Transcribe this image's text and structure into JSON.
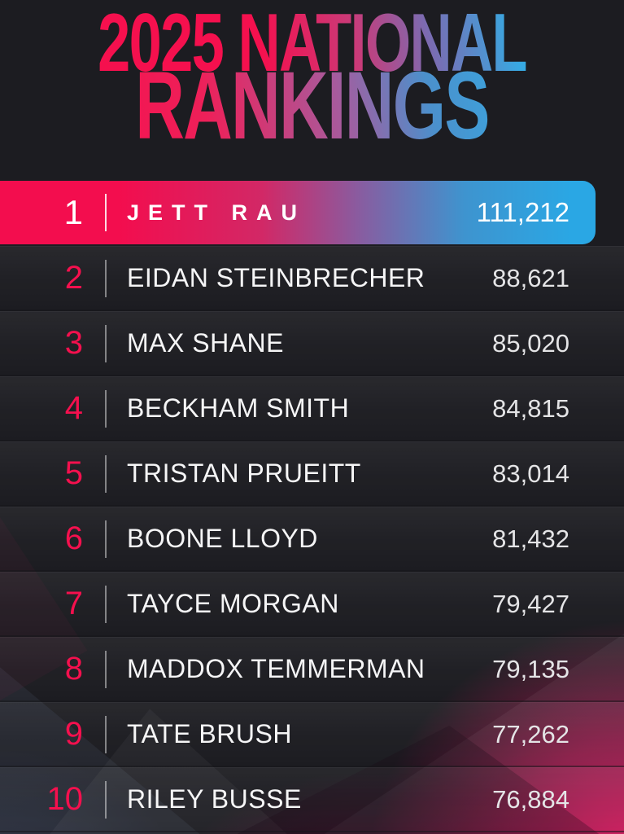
{
  "header": {
    "title_line1": "2025 NATIONAL",
    "title_line2": "RANKINGS"
  },
  "colors": {
    "accent_pink": "#F5104E",
    "accent_blue": "#2AA7E4",
    "gradient_mid_purple": "#8A5B9F",
    "background_dark": "#1C1C21",
    "glow_magenta": "#DC145F",
    "name_text": "#F5F5F6",
    "score_text": "#E4E4E6"
  },
  "chart_data": {
    "type": "table",
    "title": "2025 NATIONAL RANKINGS",
    "columns": [
      "rank",
      "name",
      "points"
    ],
    "rows": [
      {
        "rank": "1",
        "name": "JETT RAU",
        "points": "111,212"
      },
      {
        "rank": "2",
        "name": "EIDAN STEINBRECHER",
        "points": "88,621"
      },
      {
        "rank": "3",
        "name": "MAX SHANE",
        "points": "85,020"
      },
      {
        "rank": "4",
        "name": "BECKHAM SMITH",
        "points": "84,815"
      },
      {
        "rank": "5",
        "name": "TRISTAN PRUEITT",
        "points": "83,014"
      },
      {
        "rank": "6",
        "name": "BOONE LLOYD",
        "points": "81,432"
      },
      {
        "rank": "7",
        "name": "TAYCE MORGAN",
        "points": "79,427"
      },
      {
        "rank": "8",
        "name": "MADDOX TEMMERMAN",
        "points": "79,135"
      },
      {
        "rank": "9",
        "name": "TATE BRUSH",
        "points": "77,262"
      },
      {
        "rank": "10",
        "name": "RILEY BUSSE",
        "points": "76,884"
      }
    ],
    "layout": {
      "highlighted_row": 1,
      "highlight_style": "pink-to-blue gradient bar"
    }
  }
}
